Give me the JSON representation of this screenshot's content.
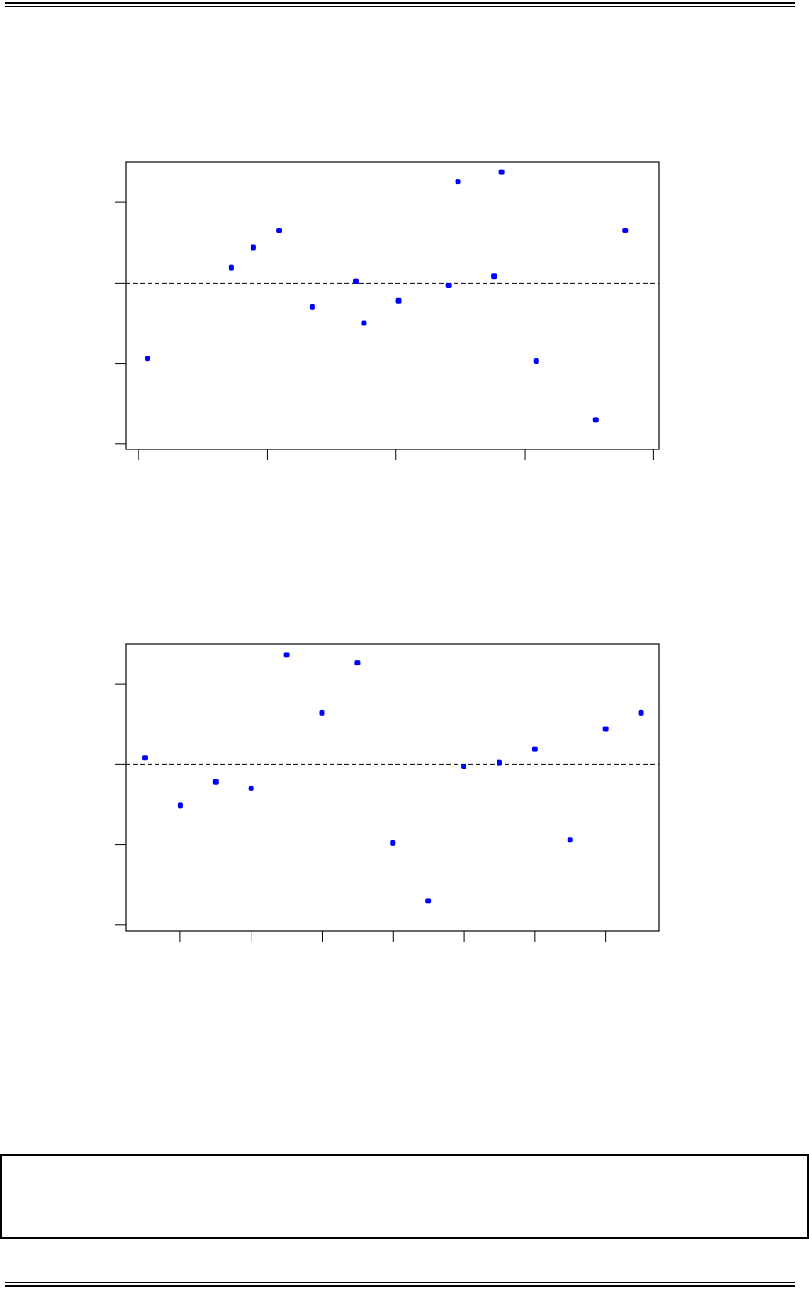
{
  "chart_data": [
    {
      "type": "scatter",
      "title": "",
      "xlabel": "",
      "ylabel": "",
      "xlim": [
        -0.1,
        4.04
      ],
      "ylim": [
        -2.07,
        1.5
      ],
      "x_ticks": [
        0,
        1,
        2,
        3,
        4
      ],
      "y_ticks": [
        1,
        0,
        -1,
        -2
      ],
      "tick_labels_shown": false,
      "reference_line": {
        "y": 0,
        "style": "dashed",
        "color": "#000000"
      },
      "marker_color": "#0000ff",
      "grid": false,
      "series": [
        {
          "x": [
            0.07,
            0.72,
            0.89,
            1.09,
            1.35,
            1.69,
            1.75,
            2.02,
            2.41,
            2.48,
            2.76,
            2.82,
            3.09,
            3.55,
            3.78
          ],
          "y": [
            -0.94,
            0.19,
            0.44,
            0.65,
            -0.3,
            0.02,
            -0.5,
            -0.22,
            -0.03,
            1.26,
            0.08,
            1.38,
            -0.97,
            -1.7,
            0.65
          ]
        }
      ]
    },
    {
      "type": "scatter",
      "title": "",
      "xlabel": "",
      "ylabel": "",
      "xlim": [
        0.46,
        15.5
      ],
      "ylim": [
        -2.07,
        1.5
      ],
      "x_ticks": [
        2,
        4,
        6,
        8,
        10,
        12,
        14
      ],
      "y_ticks": [
        1,
        0,
        -1,
        -2
      ],
      "tick_labels_shown": false,
      "reference_line": {
        "y": 0,
        "style": "dashed",
        "color": "#000000"
      },
      "marker_color": "#0000ff",
      "grid": false,
      "series": [
        {
          "x": [
            1,
            2,
            3,
            4,
            5,
            6,
            7,
            8,
            9,
            10,
            11,
            12,
            13,
            14,
            15
          ],
          "y": [
            0.08,
            -0.51,
            -0.22,
            -0.3,
            1.36,
            0.64,
            1.26,
            -0.98,
            -1.7,
            -0.03,
            0.02,
            0.19,
            -0.94,
            0.44,
            0.64
          ]
        }
      ]
    }
  ]
}
